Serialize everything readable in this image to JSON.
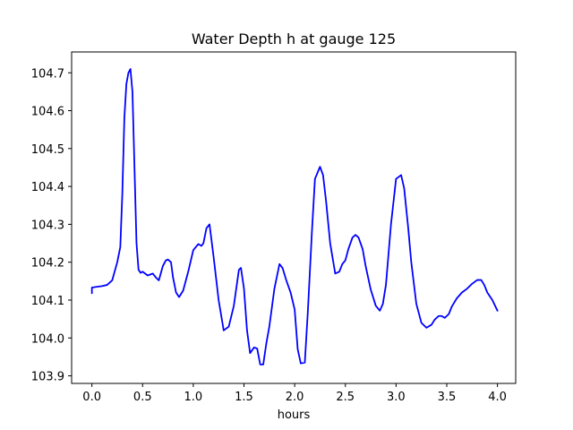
{
  "chart_data": {
    "type": "line",
    "title": "Water Depth h at gauge 125",
    "xlabel": "hours",
    "ylabel": "",
    "xlim": [
      -0.2,
      4.18
    ],
    "ylim": [
      103.88,
      104.755
    ],
    "xticks": [
      0.0,
      0.5,
      1.0,
      1.5,
      2.0,
      2.5,
      3.0,
      3.5,
      4.0
    ],
    "xtick_labels": [
      "0.0",
      "0.5",
      "1.0",
      "1.5",
      "2.0",
      "2.5",
      "3.0",
      "3.5",
      "4.0"
    ],
    "yticks": [
      103.9,
      104.0,
      104.1,
      104.2,
      104.3,
      104.4,
      104.5,
      104.6,
      104.7
    ],
    "ytick_labels": [
      "103.9",
      "104.0",
      "104.1",
      "104.2",
      "104.3",
      "104.4",
      "104.5",
      "104.6",
      "104.7"
    ],
    "grid": false,
    "legend": "none",
    "series": [
      {
        "color": "#0000ff",
        "x": [
          0.0,
          0.0,
          0.05,
          0.1,
          0.15,
          0.2,
          0.25,
          0.28,
          0.3,
          0.32,
          0.34,
          0.36,
          0.38,
          0.4,
          0.42,
          0.44,
          0.46,
          0.48,
          0.5,
          0.55,
          0.6,
          0.63,
          0.66,
          0.7,
          0.73,
          0.75,
          0.78,
          0.8,
          0.83,
          0.86,
          0.9,
          0.95,
          1.0,
          1.05,
          1.08,
          1.1,
          1.13,
          1.16,
          1.2,
          1.25,
          1.3,
          1.35,
          1.4,
          1.45,
          1.47,
          1.5,
          1.53,
          1.56,
          1.6,
          1.63,
          1.66,
          1.69,
          1.72,
          1.75,
          1.8,
          1.85,
          1.88,
          1.92,
          1.96,
          2.0,
          2.03,
          2.06,
          2.1,
          2.13,
          2.17,
          2.2,
          2.25,
          2.28,
          2.31,
          2.35,
          2.4,
          2.44,
          2.47,
          2.5,
          2.53,
          2.57,
          2.6,
          2.63,
          2.67,
          2.7,
          2.75,
          2.8,
          2.84,
          2.87,
          2.9,
          2.95,
          3.0,
          3.05,
          3.08,
          3.12,
          3.15,
          3.2,
          3.25,
          3.3,
          3.35,
          3.38,
          3.42,
          3.45,
          3.48,
          3.52,
          3.55,
          3.6,
          3.65,
          3.7,
          3.75,
          3.8,
          3.84,
          3.87,
          3.9,
          3.95,
          4.0
        ],
        "y": [
          104.118,
          104.133,
          104.135,
          104.137,
          104.14,
          104.152,
          104.2,
          104.24,
          104.38,
          104.58,
          104.67,
          104.7,
          104.71,
          104.65,
          104.45,
          104.25,
          104.18,
          104.172,
          104.175,
          104.165,
          104.17,
          104.16,
          104.152,
          104.19,
          104.205,
          104.207,
          104.2,
          104.16,
          104.12,
          104.108,
          104.125,
          104.175,
          104.232,
          104.248,
          104.243,
          104.25,
          104.29,
          104.3,
          104.215,
          104.1,
          104.02,
          104.03,
          104.085,
          104.18,
          104.185,
          104.13,
          104.02,
          103.96,
          103.975,
          103.972,
          103.93,
          103.93,
          103.985,
          104.03,
          104.13,
          104.195,
          104.185,
          104.15,
          104.12,
          104.075,
          103.97,
          103.933,
          103.935,
          104.07,
          104.28,
          104.42,
          104.452,
          104.43,
          104.36,
          104.25,
          104.17,
          104.175,
          104.195,
          104.205,
          104.235,
          104.265,
          104.272,
          104.265,
          104.235,
          104.19,
          104.128,
          104.085,
          104.072,
          104.09,
          104.14,
          104.3,
          104.42,
          104.43,
          104.395,
          104.29,
          104.2,
          104.09,
          104.04,
          104.027,
          104.035,
          104.048,
          104.058,
          104.058,
          104.053,
          104.063,
          104.083,
          104.105,
          104.12,
          104.13,
          104.143,
          104.153,
          104.153,
          104.14,
          104.12,
          104.1,
          104.072
        ]
      }
    ]
  }
}
